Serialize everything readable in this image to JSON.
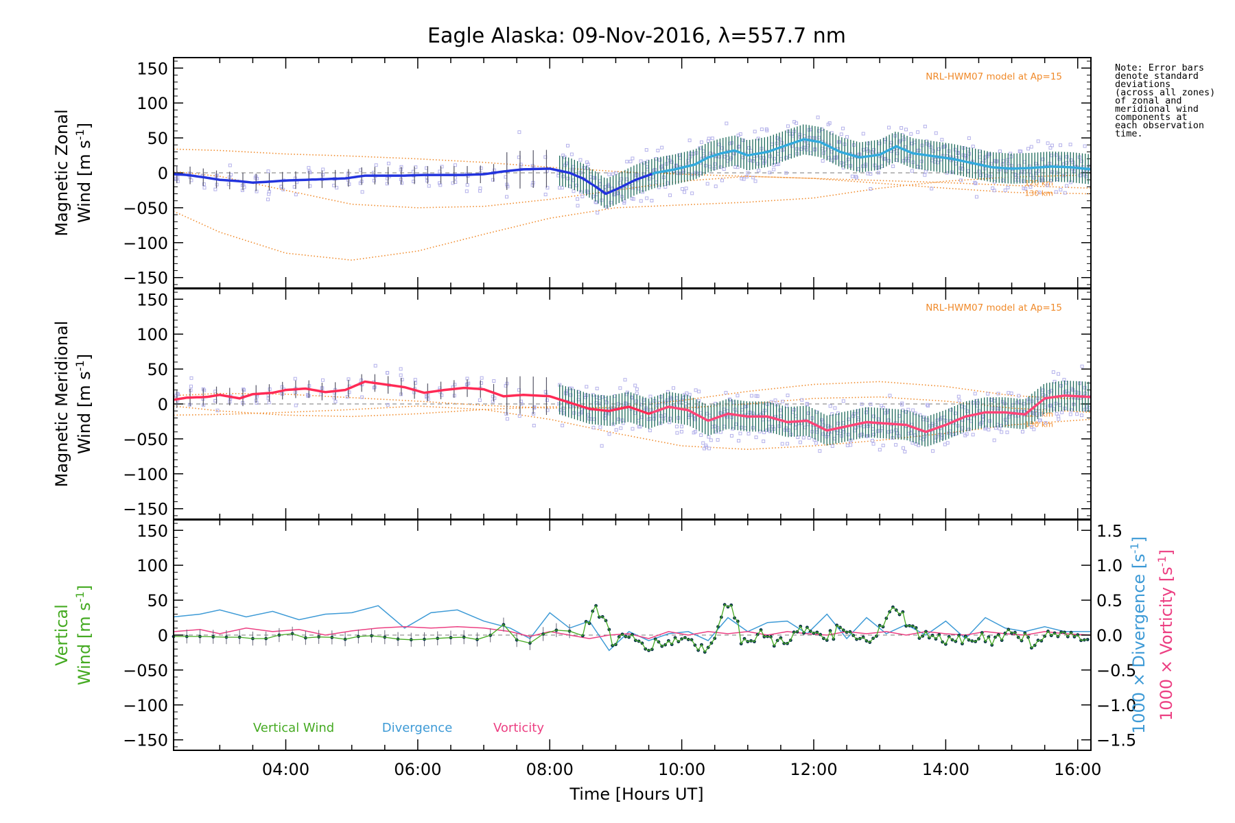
{
  "title": "Eagle Alaska: 09-Nov-2016, λ=557.7 nm",
  "xlabel": "Time [Hours UT]",
  "note": "Note: Error bars\ndenote standard\ndeviations\n(across all zones)\nof zonal and\nmeridional wind\ncomponents at\neach observation\ntime.",
  "colors": {
    "zonal_line": "#2233dd",
    "zonal_line_late": "#33aadd",
    "meridional_line": "#ff2a55",
    "meridional_line_late": "#ff4477",
    "model": "#f08a2a",
    "scatter": "#b3b0ea",
    "errorbar": "#1d6a5a",
    "vertical_wind": "#45aa22",
    "divergence": "#3d9ad6",
    "vorticity": "#ec3f82",
    "vertical_points": "#0a3348"
  },
  "chart_data": [
    {
      "type": "line",
      "panel": "zonal",
      "ylabel_line1": "Magnetic Zonal",
      "ylabel_line2": "Wind [m s",
      "ylabel_sup": "-1",
      "ylabel_close": "]",
      "ylim": [
        -165,
        165
      ],
      "xlim": [
        2.3,
        16.2
      ],
      "yticks": [
        "150",
        "100",
        "50",
        "0",
        "−050",
        "−100",
        "−150"
      ],
      "model_label": "NRL-HWM07 model at Ap=15",
      "model_level_labels": [
        "120 km",
        "130 km"
      ],
      "series": [
        {
          "role": "mean",
          "x": [
            2.3,
            2.5,
            2.8,
            3.0,
            3.3,
            3.5,
            3.7,
            4.0,
            4.3,
            4.6,
            4.9,
            5.2,
            5.5,
            5.8,
            6.1,
            6.4,
            6.7,
            7.0,
            7.3,
            7.6,
            8.0,
            8.3,
            8.5,
            8.7,
            8.85,
            9.0,
            9.3,
            9.6,
            9.9,
            10.2,
            10.4,
            10.6,
            10.8,
            11.0,
            11.3,
            11.6,
            11.85,
            12.1,
            12.4,
            12.7,
            13.0,
            13.25,
            13.5,
            13.8,
            14.1,
            14.4,
            14.7,
            15.0,
            15.3,
            15.6,
            15.9,
            16.2
          ],
          "values": [
            -2,
            -3,
            -7,
            -10,
            -12,
            -14,
            -13,
            -11,
            -10,
            -9,
            -8,
            -4,
            -4,
            -4,
            -3,
            -3,
            -3,
            -2,
            2,
            5,
            6,
            0,
            -8,
            -20,
            -30,
            -24,
            -10,
            0,
            5,
            12,
            22,
            28,
            32,
            25,
            30,
            40,
            48,
            44,
            30,
            22,
            26,
            38,
            28,
            24,
            20,
            14,
            8,
            6,
            7,
            9,
            8,
            5
          ]
        },
        {
          "role": "model-upper",
          "x": [
            2.3,
            3,
            4,
            5,
            6,
            7,
            8,
            9,
            10,
            11,
            12,
            13,
            14,
            15,
            16.2
          ],
          "values": [
            34,
            32,
            27,
            24,
            20,
            15,
            8,
            2,
            -2,
            -5,
            -8,
            -11,
            -14,
            -18,
            -22
          ]
        },
        {
          "role": "model-middle",
          "x": [
            2.3,
            3,
            4,
            5,
            6,
            7,
            8,
            9,
            10,
            11,
            12,
            13,
            14,
            15,
            16.2
          ],
          "values": [
            2,
            -5,
            -25,
            -45,
            -50,
            -48,
            -38,
            -25,
            -12,
            -5,
            -8,
            -15,
            -22,
            -28,
            -30
          ]
        },
        {
          "role": "model-lower",
          "x": [
            2.3,
            3,
            4,
            5,
            6,
            7,
            8,
            9,
            10,
            11,
            12,
            13,
            14,
            15,
            16.2
          ],
          "values": [
            -55,
            -85,
            -115,
            -125,
            -112,
            -88,
            -65,
            -50,
            -46,
            -42,
            -36,
            -22,
            -12,
            -6,
            -3
          ]
        }
      ]
    },
    {
      "type": "line",
      "panel": "meridional",
      "ylabel_line1": "Magnetic Meridional",
      "ylabel_line2": "Wind [m s",
      "ylabel_sup": "-1",
      "ylabel_close": "]",
      "ylim": [
        -165,
        165
      ],
      "xlim": [
        2.3,
        16.2
      ],
      "yticks": [
        "150",
        "100",
        "50",
        "0",
        "−050",
        "−100",
        "−150"
      ],
      "model_label": "NRL-HWM07 model at Ap=15",
      "model_level_labels": [
        "120 km",
        "130 km"
      ],
      "series": [
        {
          "role": "mean",
          "x": [
            2.3,
            2.5,
            2.8,
            3.0,
            3.3,
            3.5,
            3.8,
            4.0,
            4.3,
            4.6,
            4.9,
            5.2,
            5.5,
            5.8,
            6.1,
            6.4,
            6.7,
            7.0,
            7.3,
            7.6,
            8.0,
            8.3,
            8.6,
            8.9,
            9.2,
            9.5,
            9.8,
            10.1,
            10.4,
            10.7,
            11.0,
            11.3,
            11.6,
            11.9,
            12.2,
            12.5,
            12.8,
            13.1,
            13.4,
            13.7,
            14.0,
            14.3,
            14.6,
            14.9,
            15.2,
            15.5,
            15.8,
            16.2
          ],
          "values": [
            6,
            9,
            10,
            13,
            8,
            14,
            16,
            20,
            22,
            17,
            20,
            32,
            28,
            24,
            16,
            20,
            23,
            21,
            11,
            13,
            11,
            2,
            -7,
            -10,
            -4,
            -14,
            -4,
            -9,
            -24,
            -14,
            -18,
            -18,
            -26,
            -24,
            -38,
            -32,
            -26,
            -28,
            -30,
            -40,
            -30,
            -18,
            -12,
            -12,
            -15,
            8,
            12,
            10
          ]
        },
        {
          "role": "model-upper",
          "x": [
            2.3,
            3,
            4,
            5,
            6,
            7,
            8,
            9,
            10,
            11,
            12,
            13,
            14,
            15,
            16.2
          ],
          "values": [
            12,
            15,
            14,
            9,
            4,
            -2,
            -6,
            -5,
            5,
            18,
            28,
            32,
            25,
            12,
            6
          ]
        },
        {
          "role": "model-middle",
          "x": [
            2.3,
            3,
            4,
            5,
            6,
            7,
            8,
            9,
            10,
            11,
            12,
            13,
            14,
            15,
            16.2
          ],
          "values": [
            -3,
            -10,
            -16,
            -18,
            -14,
            -8,
            -4,
            -6,
            -6,
            0,
            8,
            10,
            4,
            -6,
            -12
          ]
        },
        {
          "role": "model-lower",
          "x": [
            2.3,
            3,
            4,
            5,
            6,
            7,
            8,
            9,
            10,
            11,
            12,
            13,
            14,
            15,
            16.2
          ],
          "values": [
            -16,
            -15,
            -12,
            -8,
            -3,
            -8,
            -22,
            -42,
            -60,
            -65,
            -60,
            -52,
            -42,
            -30,
            -22
          ]
        }
      ]
    },
    {
      "type": "line",
      "panel": "vertical",
      "ylabel_line1": "Vertical",
      "ylabel_line2": "Wind [m s",
      "ylabel_sup": "-1",
      "ylabel_close": "]",
      "ylim": [
        -165,
        165
      ],
      "xlim": [
        2.3,
        16.2
      ],
      "yticks": [
        "150",
        "100",
        "50",
        "0",
        "−050",
        "−100",
        "−150"
      ],
      "xticks": [
        "04:00",
        "06:00",
        "08:00",
        "10:00",
        "12:00",
        "14:00",
        "16:00"
      ],
      "y2lim": [
        -1.65,
        1.65
      ],
      "y2ticks": [
        "1.5",
        "1.0",
        "0.5",
        "0.0",
        "−0.5",
        "−1.0",
        "−1.5"
      ],
      "y2label_div": "1000 × Divergence [s",
      "y2label_vort": "1000 × Vorticity [s",
      "y2label_sup": "-1",
      "y2label_close": "]",
      "legend": [
        "Vertical Wind",
        "Divergence",
        "Vorticity"
      ],
      "series": [
        {
          "name": "Vertical Wind",
          "x": [
            2.3,
            2.5,
            2.8,
            3.0,
            3.3,
            3.5,
            3.8,
            4.0,
            4.3,
            4.6,
            4.9,
            5.2,
            5.5,
            5.8,
            6.1,
            6.4,
            6.7,
            7.0,
            7.3,
            7.6,
            8.0,
            8.2,
            8.5,
            8.7,
            8.8,
            8.95,
            9.2,
            9.5,
            9.8,
            10.1,
            10.4,
            10.6,
            10.75,
            10.9,
            11.2,
            11.5,
            11.8,
            12.1,
            12.4,
            12.7,
            13.0,
            13.25,
            13.5,
            13.8,
            14.1,
            14.4,
            14.7,
            15.0,
            15.3,
            15.6,
            15.9,
            16.2
          ],
          "values": [
            -2,
            -2,
            -2,
            -3,
            -3,
            -5,
            -5,
            5,
            -4,
            -2,
            -6,
            0,
            -3,
            -7,
            -6,
            -4,
            -3,
            -8,
            15,
            -18,
            8,
            6,
            5,
            38,
            30,
            -10,
            -5,
            -15,
            -10,
            -5,
            -25,
            32,
            48,
            -5,
            0,
            -12,
            12,
            -8,
            8,
            -12,
            5,
            40,
            5,
            -5,
            -10,
            0,
            -8,
            5,
            -10,
            0,
            -5,
            0
          ]
        },
        {
          "name": "Divergence",
          "x": [
            2.3,
            2.7,
            3.0,
            3.4,
            3.8,
            4.2,
            4.6,
            5.0,
            5.4,
            5.8,
            6.2,
            6.6,
            7.0,
            7.4,
            7.7,
            8.0,
            8.3,
            8.6,
            8.9,
            9.2,
            9.5,
            9.8,
            10.1,
            10.4,
            10.7,
            11.0,
            11.3,
            11.6,
            11.9,
            12.2,
            12.5,
            12.8,
            13.1,
            13.4,
            13.7,
            14.0,
            14.3,
            14.6,
            14.9,
            15.2,
            15.5,
            15.8,
            16.2
          ],
          "values": [
            0.26,
            0.3,
            0.36,
            0.26,
            0.34,
            0.22,
            0.3,
            0.32,
            0.42,
            0.1,
            0.32,
            0.36,
            0.2,
            0.1,
            -0.05,
            0.32,
            0.1,
            0.2,
            -0.22,
            0.05,
            -0.08,
            0.02,
            0.05,
            -0.08,
            0.25,
            0.05,
            0.18,
            0.2,
            0.02,
            0.3,
            -0.05,
            0.25,
            0.02,
            0.15,
            0.0,
            0.2,
            -0.05,
            0.25,
            0.1,
            0.05,
            0.12,
            0.05,
            0.05
          ]
        },
        {
          "name": "Vorticity",
          "x": [
            2.3,
            2.7,
            3.0,
            3.4,
            3.8,
            4.2,
            4.6,
            5.0,
            5.4,
            5.8,
            6.2,
            6.6,
            7.0,
            7.4,
            7.7,
            8.0,
            8.3,
            8.6,
            8.9,
            9.2,
            9.5,
            9.8,
            10.1,
            10.4,
            10.7,
            11.0,
            11.3,
            11.6,
            11.9,
            12.2,
            12.5,
            12.8,
            13.1,
            13.4,
            13.7,
            14.0,
            14.3,
            14.6,
            14.9,
            15.2,
            15.5,
            15.8,
            16.2
          ],
          "values": [
            0.05,
            0.08,
            0.02,
            0.1,
            0.05,
            0.08,
            0.0,
            0.06,
            0.1,
            0.12,
            0.1,
            0.12,
            0.1,
            0.05,
            -0.02,
            0.05,
            0.0,
            -0.05,
            0.0,
            0.02,
            -0.05,
            0.05,
            0.0,
            0.05,
            0.02,
            0.05,
            0.0,
            0.05,
            0.02,
            0.0,
            0.05,
            0.02,
            0.05,
            0.0,
            0.05,
            0.02,
            0.0,
            0.05,
            0.02,
            0.0,
            0.05,
            0.02,
            0.0
          ]
        }
      ]
    }
  ]
}
